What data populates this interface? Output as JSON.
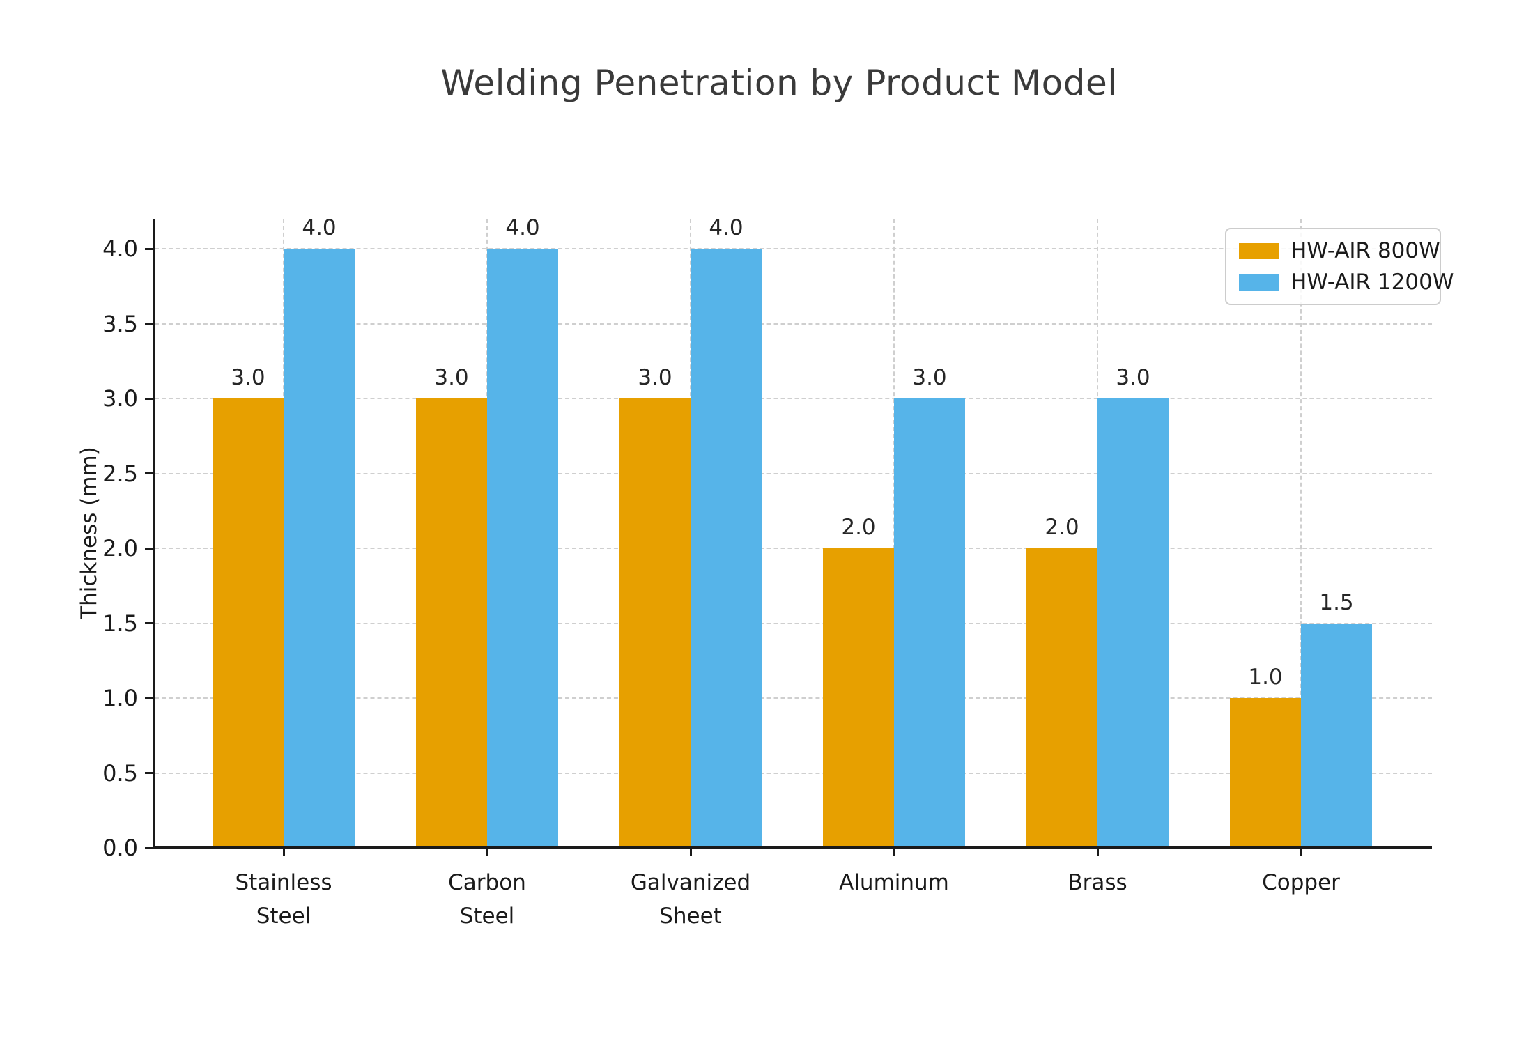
{
  "figure": {
    "title": "Welding Penetration by Product Model"
  },
  "chart_data": {
    "type": "bar",
    "title": "Welding Penetration by Product Model",
    "xlabel": "",
    "ylabel": "Thickness (mm)",
    "categories": [
      "Stainless\nSteel",
      "Carbon\nSteel",
      "Galvanized\nSheet",
      "Aluminum",
      "Brass",
      "Copper"
    ],
    "series": [
      {
        "name": "HW-AIR 800W",
        "color": "#E7A000",
        "values": [
          3.0,
          3.0,
          3.0,
          2.0,
          2.0,
          1.0
        ]
      },
      {
        "name": "HW-AIR 1200W",
        "color": "#56B4E9",
        "values": [
          4.0,
          4.0,
          4.0,
          3.0,
          3.0,
          1.5
        ]
      }
    ],
    "bar_value_labels": {
      "HW-AIR 800W": [
        "3.0",
        "3.0",
        "3.0",
        "2.0",
        "2.0",
        "1.0"
      ],
      "HW-AIR 1200W": [
        "4.0",
        "4.0",
        "4.0",
        "3.0",
        "3.0",
        "1.5"
      ]
    },
    "yticks": [
      "0.0",
      "0.5",
      "1.0",
      "1.5",
      "2.0",
      "2.5",
      "3.0",
      "3.5",
      "4.0"
    ],
    "ylim": [
      0,
      4.2
    ],
    "grid": true,
    "grid_style": "dashed",
    "legend_position": "upper right",
    "colors": {
      "series_800w": "#E7A000",
      "series_1200w": "#56B4E9",
      "grid": "#cfcfcf",
      "axis": "#1a1a1a",
      "title_text": "#3a3a3a"
    }
  }
}
